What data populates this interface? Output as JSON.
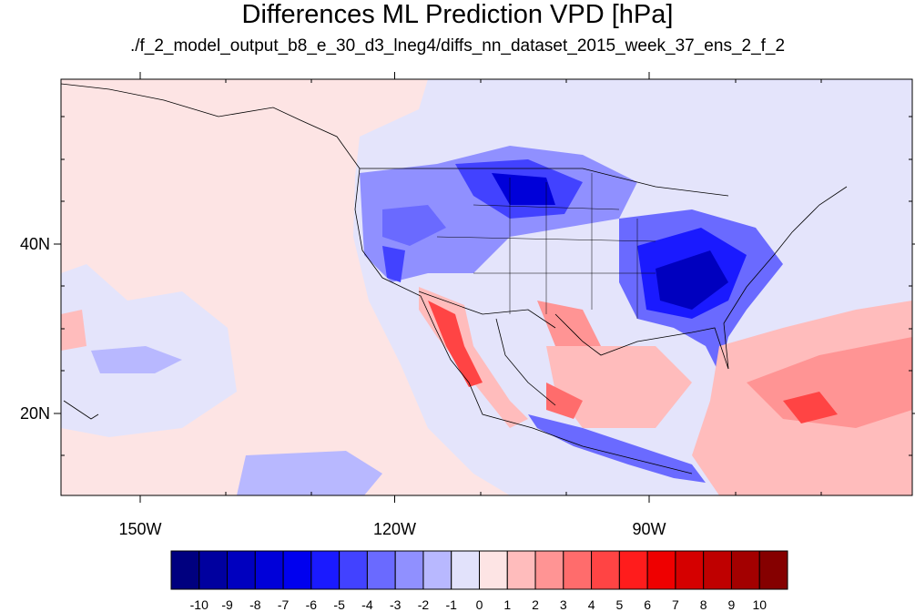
{
  "title": "Differences ML Prediction VPD [hPa]",
  "subtitle": "./f_2_model_output_b8_e_30_d3_lneg4/diffs_nn_dataset_2015_week_37_ens_2_f_2",
  "axes": {
    "x_ticks": [
      {
        "label": "150W",
        "lon": -150
      },
      {
        "label": "120W",
        "lon": -120
      },
      {
        "label": "90W",
        "lon": -90
      }
    ],
    "y_ticks": [
      {
        "label": "40N",
        "lat": 40
      },
      {
        "label": "20N",
        "lat": 20
      }
    ]
  },
  "colorbar": {
    "colors": [
      "#00007f",
      "#00009f",
      "#0000bf",
      "#0000d9",
      "#0000ef",
      "#1a1aff",
      "#4242ff",
      "#6a6aff",
      "#9090ff",
      "#b8b8ff",
      "#e2e2fb",
      "#fde4e4",
      "#ffbcbc",
      "#ff9494",
      "#ff6c6c",
      "#ff4444",
      "#ff1c1c",
      "#ef0000",
      "#d50000",
      "#bf0000",
      "#a30000",
      "#850000"
    ],
    "labels": [
      "-10",
      "-9",
      "-8",
      "-7",
      "-6",
      "-5",
      "-4",
      "-3",
      "-2",
      "-1",
      "0",
      "1",
      "2",
      "3",
      "4",
      "5",
      "6",
      "7",
      "8",
      "9",
      "10"
    ]
  }
}
